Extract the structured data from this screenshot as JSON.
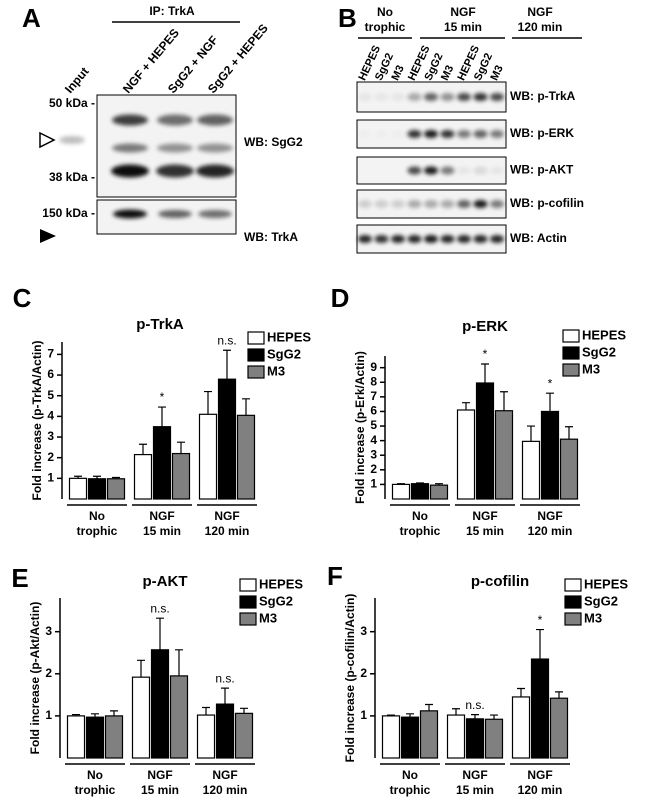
{
  "blot_A": {
    "panel": "A",
    "header": "IP: TrkA",
    "lanes": [
      "Input",
      "NGF + HEPES",
      "SgG2 + NGF",
      "SgG2 + HEPES"
    ],
    "markers": [
      "50 kDa -",
      "38 kDa -",
      "150 kDa -"
    ],
    "blots": [
      "WB: SgG2",
      "WB: TrkA"
    ]
  },
  "blot_B": {
    "panel": "B",
    "groups": [
      "No\ntrophic",
      "NGF\n15 min",
      "NGF\n120 min"
    ],
    "lanes": [
      "HEPES",
      "SgG2",
      "M3",
      "HEPES",
      "SgG2",
      "M3",
      "HEPES",
      "SgG2",
      "M3"
    ],
    "blots": [
      "WB: p-TrkA",
      "WB: p-ERK",
      "WB: p-AKT",
      "WB: p-cofilin",
      "WB: Actin"
    ]
  },
  "chart_data": [
    {
      "type": "bar",
      "panel": "C",
      "title": "p-TrkA",
      "y_label": "Fold increase (p-TrkA/Actin)",
      "categories": [
        "No\ntrophic",
        "NGF\n15 min",
        "NGF\n120 min"
      ],
      "legend": "top-right",
      "series": [
        {
          "name": "HEPES",
          "color": "#ffffff",
          "values": [
            1,
            2.15,
            4.1
          ],
          "errors": [
            0.1,
            0.5,
            1.1
          ],
          "annotations": [
            null,
            null,
            null
          ]
        },
        {
          "name": "SgG2",
          "color": "#000000",
          "values": [
            0.98,
            3.5,
            5.8
          ],
          "errors": [
            0.12,
            0.95,
            1.4
          ],
          "annotations": [
            null,
            "*",
            "n.s."
          ]
        },
        {
          "name": "M3",
          "color": "#808080",
          "values": [
            0.98,
            2.2,
            4.05
          ],
          "errors": [
            0.06,
            0.55,
            0.8
          ],
          "annotations": [
            null,
            null,
            null
          ]
        }
      ],
      "ylim": [
        0,
        7.6
      ],
      "yticks": [
        1,
        2,
        3,
        4,
        5,
        6,
        7
      ]
    },
    {
      "type": "bar",
      "panel": "D",
      "title": "p-ERK",
      "y_label": "Fold increase (p-Erk/Actin)",
      "categories": [
        "No\ntrophic",
        "NGF\n15 min",
        "NGF\n120 min"
      ],
      "legend": "top-right",
      "series": [
        {
          "name": "HEPES",
          "color": "#ffffff",
          "values": [
            1,
            6.1,
            3.95
          ],
          "errors": [
            0.05,
            0.5,
            1.05
          ],
          "annotations": [
            null,
            null,
            null
          ]
        },
        {
          "name": "SgG2",
          "color": "#000000",
          "values": [
            1.05,
            7.95,
            6.0
          ],
          "errors": [
            0.05,
            1.3,
            1.25
          ],
          "annotations": [
            null,
            "*",
            "*"
          ]
        },
        {
          "name": "M3",
          "color": "#808080",
          "values": [
            0.95,
            6.05,
            4.1
          ],
          "errors": [
            0.1,
            1.3,
            0.85
          ],
          "annotations": [
            null,
            null,
            null
          ]
        }
      ],
      "ylim": [
        0,
        9.8
      ],
      "yticks": [
        1,
        2,
        3,
        4,
        5,
        6,
        7,
        8,
        9
      ]
    },
    {
      "type": "bar",
      "panel": "E",
      "title": "p-AKT",
      "y_label": "Fold increase (p-Akt/Actin)",
      "categories": [
        "No\ntrophic",
        "NGF\n15 min",
        "NGF\n120 min"
      ],
      "legend": "top-right",
      "series": [
        {
          "name": "HEPES",
          "color": "#ffffff",
          "values": [
            1,
            1.92,
            1.02
          ],
          "errors": [
            0.03,
            0.4,
            0.18
          ],
          "annotations": [
            null,
            null,
            null
          ]
        },
        {
          "name": "SgG2",
          "color": "#000000",
          "values": [
            0.97,
            2.57,
            1.28
          ],
          "errors": [
            0.08,
            0.75,
            0.38
          ],
          "annotations": [
            null,
            "n.s.",
            "n.s."
          ]
        },
        {
          "name": "M3",
          "color": "#808080",
          "values": [
            1.0,
            1.95,
            1.06
          ],
          "errors": [
            0.12,
            0.62,
            0.12
          ],
          "annotations": [
            null,
            null,
            null
          ]
        }
      ],
      "ylim": [
        0,
        3.8
      ],
      "yticks": [
        1,
        2,
        3
      ]
    },
    {
      "type": "bar",
      "panel": "F",
      "title": "p-cofilin",
      "y_label": "Fold increase (p-cofilin/Actin)",
      "categories": [
        "No\ntrophic",
        "NGF\n15 min",
        "NGF\n120 min"
      ],
      "legend": "top-right",
      "series": [
        {
          "name": "HEPES",
          "color": "#ffffff",
          "values": [
            1,
            1.02,
            1.45
          ],
          "errors": [
            0.02,
            0.15,
            0.2
          ],
          "annotations": [
            null,
            null,
            null
          ]
        },
        {
          "name": "SgG2",
          "color": "#000000",
          "values": [
            0.97,
            0.93,
            2.35
          ],
          "errors": [
            0.08,
            0.1,
            0.7
          ],
          "annotations": [
            null,
            "n.s.",
            "*"
          ]
        },
        {
          "name": "M3",
          "color": "#808080",
          "values": [
            1.12,
            0.92,
            1.42
          ],
          "errors": [
            0.15,
            0.1,
            0.15
          ],
          "annotations": [
            null,
            null,
            null
          ]
        }
      ],
      "ylim": [
        0,
        3.8
      ],
      "yticks": [
        1,
        2,
        3
      ]
    }
  ]
}
